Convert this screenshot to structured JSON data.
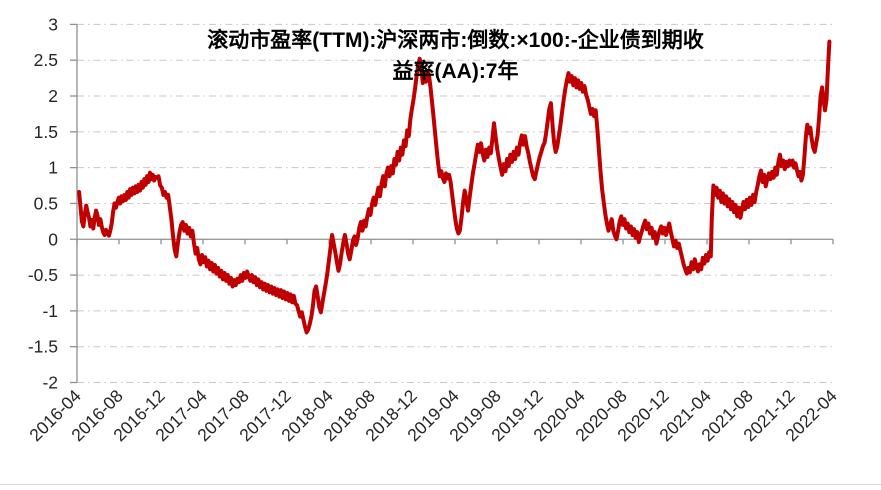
{
  "colors": {
    "line": "#C00000",
    "grid": "#C8C8C8",
    "axis": "#909090",
    "tick": "#909090",
    "tick_label": "#262626",
    "title": "#000000",
    "background": "#FFFFFF"
  },
  "chart_data": {
    "type": "line",
    "title": "滚动市盈率(TTM):沪深两市:倒数:×100:-企业债到期收益率(AA):7年",
    "title_line1": "滚动市盈率(TTM):沪深两市:倒数:×100:-企业债到期收",
    "title_line2": "益率(AA):7年",
    "series_label": "滚动市盈率(TTM):沪深两市:倒数:×100:-企业债到期收益率(AA):7年",
    "legend": "none",
    "grid": "horizontal dash-dot",
    "y_axis": {
      "min": -2,
      "max": 3,
      "tick_step": 0.5,
      "tick_labels": [
        "3",
        "2.5",
        "2",
        "1.5",
        "1",
        "0.5",
        "0",
        "-0.5",
        "-1",
        "-1.5",
        "-2"
      ],
      "axis_cross_value": 0
    },
    "x_axis": {
      "start_month_label": "2016-04",
      "end_month_label": "2022-04",
      "tick_interval_months": 4,
      "total_months": 72,
      "tick_labels": [
        "2016-04",
        "2016-08",
        "2016-12",
        "2017-04",
        "2017-08",
        "2017-12",
        "2018-04",
        "2018-08",
        "2018-12",
        "2019-04",
        "2019-08",
        "2019-12",
        "2020-04",
        "2020-08",
        "2020-12",
        "2021-04",
        "2021-08",
        "2021-12",
        "2022-04"
      ],
      "label_rotation_deg": -45
    },
    "series_segments": [
      {
        "m0": 0.2,
        "m1": 7.76,
        "values": [
          0.66,
          0.45,
          0.25,
          0.18,
          0.35,
          0.47,
          0.38,
          0.3,
          0.18,
          0.27,
          0.15,
          0.3,
          0.4,
          0.33,
          0.2,
          0.28,
          0.17,
          0.1,
          0.06,
          0.13,
          0.08,
          0.05,
          0.12,
          0.22,
          0.38,
          0.5,
          0.44,
          0.52,
          0.58,
          0.5,
          0.6,
          0.53,
          0.62,
          0.55,
          0.66,
          0.58,
          0.7,
          0.62,
          0.72,
          0.64,
          0.74,
          0.66,
          0.76,
          0.68,
          0.8,
          0.72,
          0.84,
          0.76,
          0.88,
          0.8,
          0.93,
          0.84,
          0.9,
          0.82,
          0.87,
          0.86,
          0.88
        ]
      },
      {
        "m0": 7.92,
        "m1": 20.8,
        "values": [
          0.75,
          0.72,
          0.62,
          0.66,
          0.58,
          0.62,
          0.45,
          0.28,
          0.05,
          -0.15,
          -0.24,
          -0.05,
          0.1,
          0.2,
          0.24,
          0.12,
          0.2,
          0.08,
          0.16,
          0.04,
          0.12,
          -0.06,
          -0.2,
          -0.12,
          -0.28,
          -0.35,
          -0.22,
          -0.32,
          -0.25,
          -0.38,
          -0.3,
          -0.42,
          -0.33,
          -0.45,
          -0.36,
          -0.48,
          -0.4,
          -0.52,
          -0.44,
          -0.56,
          -0.47,
          -0.58,
          -0.5,
          -0.62,
          -0.54,
          -0.66,
          -0.57,
          -0.64,
          -0.55,
          -0.6,
          -0.5,
          -0.58,
          -0.47,
          -0.54,
          -0.45,
          -0.52,
          -0.58,
          -0.5,
          -0.6,
          -0.53,
          -0.64,
          -0.56,
          -0.67,
          -0.6,
          -0.7,
          -0.62,
          -0.72,
          -0.64,
          -0.74,
          -0.66,
          -0.76,
          -0.68,
          -0.78,
          -0.7,
          -0.8,
          -0.71,
          -0.82,
          -0.73,
          -0.84,
          -0.75,
          -0.86,
          -0.77,
          -0.88,
          -0.79,
          -0.9
        ]
      },
      {
        "m0": 20.95,
        "m1": 31.6,
        "values": [
          -0.92,
          -1.0,
          -1.08,
          -1.02,
          -1.12,
          -1.22,
          -1.3,
          -1.26,
          -1.18,
          -1.08,
          -0.92,
          -0.72,
          -0.66,
          -0.8,
          -0.95,
          -1.02,
          -0.88,
          -0.75,
          -0.62,
          -0.48,
          -0.3,
          -0.12,
          0.06,
          -0.06,
          -0.18,
          -0.32,
          -0.44,
          -0.34,
          -0.18,
          -0.05,
          0.06,
          -0.06,
          -0.2,
          -0.28,
          -0.16,
          -0.02,
          0.04,
          -0.08,
          0.02,
          0.16,
          0.24,
          0.12,
          0.26,
          0.18,
          0.32,
          0.42,
          0.34,
          0.5,
          0.58,
          0.48,
          0.62,
          0.72,
          0.6,
          0.78,
          0.88,
          0.74,
          0.92,
          1.0,
          0.88,
          1.02,
          0.92,
          1.12,
          1.04,
          1.22,
          1.1,
          1.28,
          1.18,
          1.38,
          1.3,
          1.52,
          1.44
        ]
      },
      {
        "m0": 31.75,
        "m1": 36.32,
        "values": [
          1.68,
          1.82,
          1.95,
          2.1,
          2.28,
          2.42,
          2.52,
          2.4,
          2.18,
          2.28,
          2.2,
          2.35,
          2.3,
          2.12,
          1.92,
          1.7,
          1.48,
          1.25,
          1.05,
          0.88,
          0.95,
          0.85,
          0.8,
          0.92,
          0.85,
          0.9,
          0.8,
          0.62,
          0.45,
          0.28,
          0.15,
          0.08
        ]
      },
      {
        "m0": 36.46,
        "m1": 44.53,
        "values": [
          0.12,
          0.3,
          0.52,
          0.68,
          0.55,
          0.4,
          0.58,
          0.75,
          0.92,
          1.05,
          1.18,
          1.32,
          1.22,
          1.34,
          1.2,
          1.1,
          1.25,
          1.15,
          1.28,
          1.2,
          1.4,
          1.62,
          1.42,
          1.25,
          1.12,
          1.0,
          0.9,
          1.05,
          0.95,
          1.12,
          1.02,
          1.18,
          1.08,
          1.22,
          1.12,
          1.28,
          1.18,
          1.35,
          1.45,
          1.32,
          1.44,
          1.3,
          1.2,
          1.08,
          0.98,
          0.88,
          0.84,
          0.95,
          1.05,
          1.15,
          1.22,
          1.3,
          1.35
        ]
      },
      {
        "m0": 44.68,
        "m1": 51.38,
        "values": [
          1.48,
          1.65,
          1.82,
          1.9,
          1.6,
          1.35,
          1.22,
          1.3,
          1.45,
          1.6,
          1.78,
          1.95,
          2.1,
          2.22,
          2.32,
          2.2,
          2.28,
          2.15,
          2.25,
          2.12,
          2.22,
          2.1,
          2.18,
          2.06,
          2.14,
          2.02,
          1.95,
          1.85,
          1.75,
          1.82,
          1.72,
          1.8,
          1.55,
          1.25,
          0.95,
          0.7,
          0.52,
          0.35,
          0.22,
          0.12,
          0.2,
          0.28,
          0.12,
          0.05,
          0.0
        ]
      },
      {
        "m0": 51.53,
        "m1": 60.36,
        "values": [
          0.12,
          0.25,
          0.32,
          0.2,
          0.28,
          0.15,
          0.22,
          0.1,
          0.18,
          0.06,
          0.14,
          0.02,
          0.1,
          -0.04,
          0.05,
          0.12,
          0.2,
          0.26,
          0.14,
          0.22,
          0.08,
          0.16,
          0.02,
          0.1,
          -0.06,
          0.04,
          0.12,
          0.18,
          0.08,
          0.16,
          0.06,
          0.14,
          0.22,
          0.1,
          0.0,
          -0.1,
          -0.02,
          -0.12,
          -0.06,
          -0.16,
          -0.25,
          -0.35,
          -0.42,
          -0.48,
          -0.4,
          -0.46,
          -0.32,
          -0.42,
          -0.28,
          -0.38,
          -0.45,
          -0.35,
          -0.42,
          -0.26,
          -0.34,
          -0.22,
          -0.3,
          -0.18,
          -0.24
        ]
      },
      {
        "m0": 60.46,
        "m1": 67.86,
        "values": [
          0.3,
          0.75,
          0.62,
          0.72,
          0.58,
          0.68,
          0.52,
          0.64,
          0.5,
          0.6,
          0.46,
          0.56,
          0.42,
          0.52,
          0.38,
          0.48,
          0.32,
          0.44,
          0.3,
          0.42,
          0.52,
          0.42,
          0.55,
          0.45,
          0.58,
          0.48,
          0.62,
          0.52,
          0.66,
          0.76,
          0.88,
          0.96,
          0.8,
          0.9,
          0.74,
          0.84,
          0.92,
          0.84,
          0.94,
          0.86,
          1.0,
          0.9,
          1.08,
          1.18,
          1.02,
          1.1,
          0.98,
          1.08,
          1.02,
          1.1
        ]
      },
      {
        "m0": 68.01,
        "m1": 71.66,
        "values": [
          1.04,
          1.1,
          1.0,
          1.06,
          0.96,
          0.88,
          0.94,
          0.82,
          0.9,
          1.15,
          1.42,
          1.6,
          1.48,
          1.56,
          1.4,
          1.28,
          1.22,
          1.34,
          1.45,
          1.7,
          2.0,
          2.12,
          1.95,
          1.8,
          1.95,
          2.4,
          2.76
        ]
      }
    ]
  }
}
